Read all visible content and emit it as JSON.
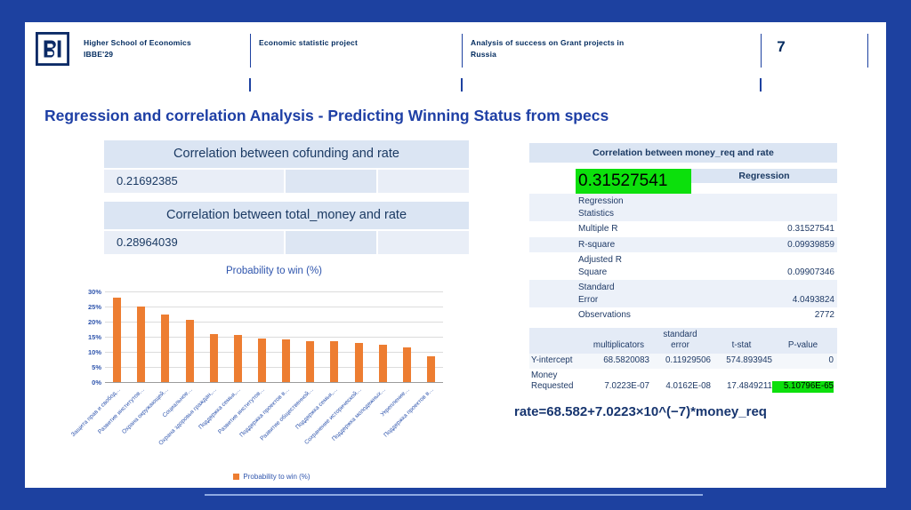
{
  "colors": {
    "frame_blue": "#1d41a0",
    "accent_line": "#8ea9e2",
    "navy_text": "#002a5e",
    "title_blue": "#1e3fa5",
    "table_header_bg": "#dbe5f3",
    "highlight_green": "#0ce00c",
    "bar_orange": "#ED7D31",
    "chart_text_blue": "#2f55ad"
  },
  "header": {
    "org": [
      "Higher School of Economics",
      "IBBE'29"
    ],
    "project": "Economic statistic project",
    "topic": [
      "Analysis of success on Grant projects in",
      "Russia"
    ],
    "page_number": "7"
  },
  "title": "Regression and correlation Analysis - Predicting Winning Status from specs",
  "correlation_tables": [
    {
      "header": "Correlation between cofunding and rate",
      "value": "0.21692385"
    },
    {
      "header": "Correlation between total_money and rate",
      "value": "0.28964039"
    }
  ],
  "chart_data": {
    "type": "bar",
    "title": "Probability to win (%)",
    "legend": "Probability to win (%)",
    "xlabel": "",
    "ylabel": "",
    "ylim": [
      0,
      30
    ],
    "grid": true,
    "legend_position": "bottom",
    "bar_color": "#ED7D31",
    "yticks": [
      "0%",
      "5%",
      "10%",
      "15%",
      "20%",
      "25%",
      "30%"
    ],
    "categories": [
      "Защита прав и свобод…",
      "Развитие институтов…",
      "Охрана окружающей…",
      "Социальное…",
      "Охрана здоровья граждан,…",
      "Поддержка семьи,…",
      "Развитие институтов…",
      "Поддержка проектов в…",
      "Развитие общественной…",
      "Поддержка семьи,…",
      "Сохранение исторической…",
      "Поддержка молодежных…",
      "Укрепление…",
      "Поддержка проектов в…"
    ],
    "values": [
      28,
      25,
      22.5,
      20.5,
      16,
      15.5,
      14.5,
      14,
      13.5,
      13.5,
      13,
      12.5,
      11.5,
      8.5
    ]
  },
  "regression_panel": {
    "header": "Correlation between money_req and rate",
    "highlight_value": "0.31527541",
    "highlight_color": "#0ce00c",
    "regression_title": "Regression",
    "stats_title": "Regression Statistics",
    "stats": [
      {
        "label": "Multiple R",
        "value": "0.31527541"
      },
      {
        "label": "R-square",
        "value": "0.09939859"
      },
      {
        "label": "Adjusted R Square",
        "value": "0.09907346"
      },
      {
        "label": "Standard Error",
        "value": "4.0493824"
      },
      {
        "label": "Observations",
        "value": "2772"
      }
    ],
    "coefficients": {
      "headers": [
        "",
        "multiplicators",
        "standard\nerror",
        "t-stat",
        "P-value"
      ],
      "rows": [
        {
          "label": "Y-intercept",
          "values": [
            "68.5820083",
            "0.11929506",
            "574.893945",
            "0"
          ],
          "highlight_p": false
        },
        {
          "label": "Money Requested",
          "values": [
            "7.0223E-07",
            "4.0162E-08",
            "17.4849211",
            "5.10796E-65"
          ],
          "highlight_p": true
        }
      ]
    },
    "formula": "rate=68.582+7.0223×10^(−7)*money_req"
  }
}
